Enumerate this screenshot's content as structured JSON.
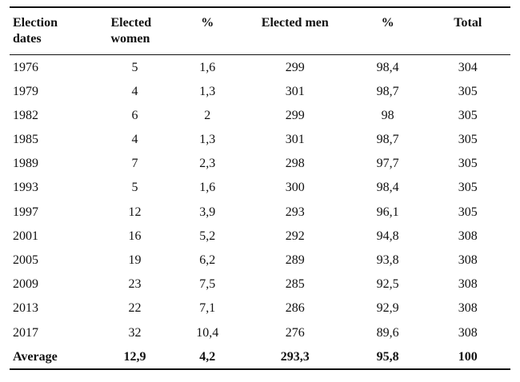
{
  "table": {
    "columns": [
      "Election dates",
      "Elected women",
      "%",
      "Elected men",
      "%",
      "Total"
    ],
    "rows": [
      [
        "1976",
        "5",
        "1,6",
        "299",
        "98,4",
        "304"
      ],
      [
        "1979",
        "4",
        "1,3",
        "301",
        "98,7",
        "305"
      ],
      [
        "1982",
        "6",
        "2",
        "299",
        "98",
        "305"
      ],
      [
        "1985",
        "4",
        "1,3",
        "301",
        "98,7",
        "305"
      ],
      [
        "1989",
        "7",
        "2,3",
        "298",
        "97,7",
        "305"
      ],
      [
        "1993",
        "5",
        "1,6",
        "300",
        "98,4",
        "305"
      ],
      [
        "1997",
        "12",
        "3,9",
        "293",
        "96,1",
        "305"
      ],
      [
        "2001",
        "16",
        "5,2",
        "292",
        "94,8",
        "308"
      ],
      [
        "2005",
        "19",
        "6,2",
        "289",
        "93,8",
        "308"
      ],
      [
        "2009",
        "23",
        "7,5",
        "285",
        "92,5",
        "308"
      ],
      [
        "2013",
        "22",
        "7,1",
        "286",
        "92,9",
        "308"
      ],
      [
        "2017",
        "32",
        "10,4",
        "276",
        "89,6",
        "308"
      ]
    ],
    "average": [
      "Average",
      "12,9",
      "4,2",
      "293,3",
      "95,8",
      "100"
    ],
    "text_color": "#111111",
    "background_color": "#ffffff"
  }
}
